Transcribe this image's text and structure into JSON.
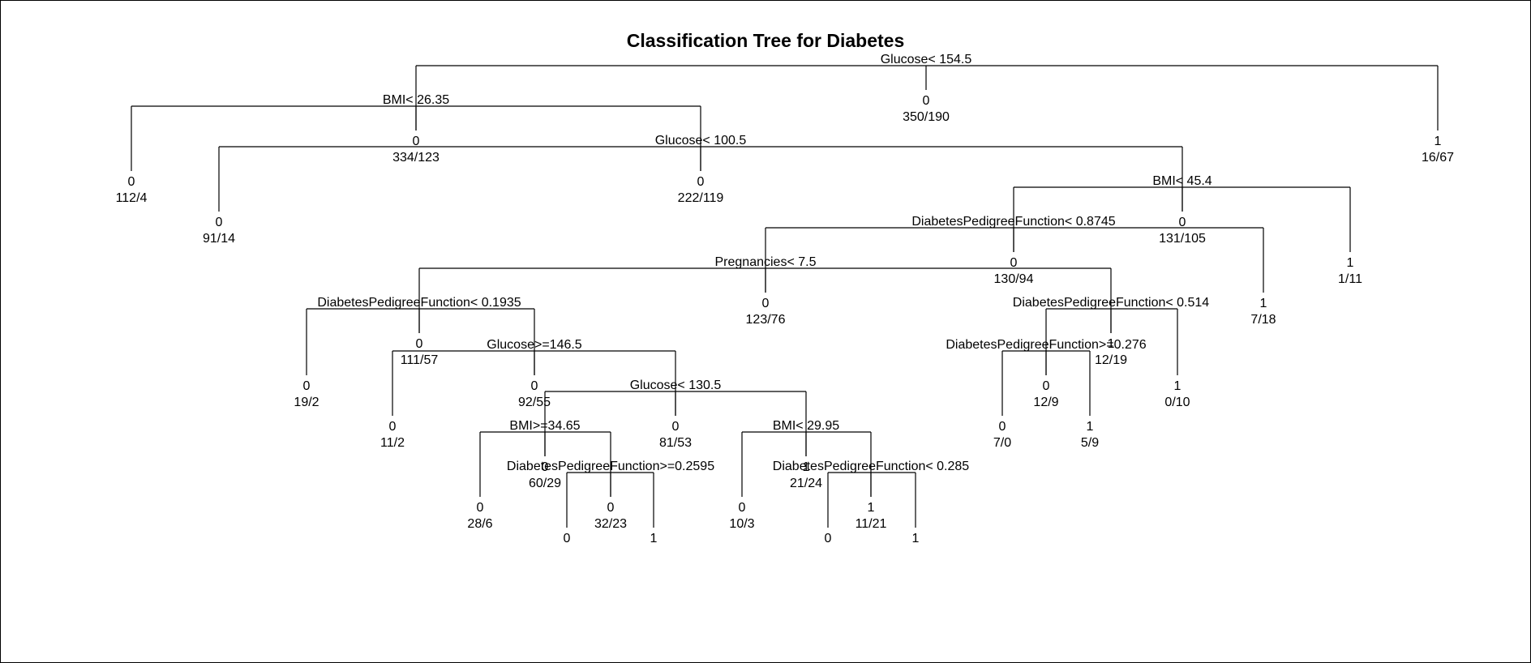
{
  "title": "Classification Tree for Diabetes",
  "colors": {
    "line": "#000000",
    "text": "#000000",
    "background": "#ffffff"
  },
  "nodes": [
    {
      "id": "n1",
      "parent": null,
      "split": "Glucose< 154.5",
      "class": "0",
      "counts": "350/190"
    },
    {
      "id": "n2",
      "parent": "n1",
      "split": "BMI< 26.35",
      "class": "0",
      "counts": "334/123"
    },
    {
      "id": "n3",
      "parent": "n1",
      "split": "",
      "class": "1",
      "counts": "16/67"
    },
    {
      "id": "n4",
      "parent": "n2",
      "split": "",
      "class": "0",
      "counts": "112/4"
    },
    {
      "id": "n5",
      "parent": "n2",
      "split": "Glucose< 100.5",
      "class": "0",
      "counts": "222/119"
    },
    {
      "id": "n6",
      "parent": "n5",
      "split": "",
      "class": "0",
      "counts": "91/14"
    },
    {
      "id": "n7",
      "parent": "n5",
      "split": "BMI< 45.4",
      "class": "0",
      "counts": "131/105"
    },
    {
      "id": "n8",
      "parent": "n7",
      "split": "DiabetesPedigreeFunction< 0.8745",
      "class": "0",
      "counts": "130/94"
    },
    {
      "id": "n9",
      "parent": "n7",
      "split": "",
      "class": "1",
      "counts": "1/11"
    },
    {
      "id": "n10",
      "parent": "n8",
      "split": "Pregnancies< 7.5",
      "class": "0",
      "counts": "123/76"
    },
    {
      "id": "n11",
      "parent": "n8",
      "split": "",
      "class": "1",
      "counts": "7/18"
    },
    {
      "id": "n12",
      "parent": "n10",
      "split": "DiabetesPedigreeFunction< 0.1935",
      "class": "0",
      "counts": "111/57"
    },
    {
      "id": "n13",
      "parent": "n10",
      "split": "DiabetesPedigreeFunction< 0.514",
      "class": "1",
      "counts": "12/19"
    },
    {
      "id": "n14",
      "parent": "n12",
      "split": "",
      "class": "0",
      "counts": "19/2"
    },
    {
      "id": "n15",
      "parent": "n12",
      "split": "Glucose>=146.5",
      "class": "0",
      "counts": "92/55"
    },
    {
      "id": "n16",
      "parent": "n15",
      "split": "",
      "class": "0",
      "counts": "11/2"
    },
    {
      "id": "n17",
      "parent": "n15",
      "split": "Glucose< 130.5",
      "class": "0",
      "counts": "81/53"
    },
    {
      "id": "n18",
      "parent": "n17",
      "split": "BMI>=34.65",
      "class": "0",
      "counts": "60/29"
    },
    {
      "id": "n19",
      "parent": "n17",
      "split": "BMI< 29.95",
      "class": "1",
      "counts": "21/24"
    },
    {
      "id": "n20",
      "parent": "n18",
      "split": "",
      "class": "0",
      "counts": "28/6"
    },
    {
      "id": "n21",
      "parent": "n18",
      "split": "DiabetesPedigreeFunction>=0.2595",
      "class": "0",
      "counts": "32/23"
    },
    {
      "id": "n22",
      "parent": "n21",
      "split": "",
      "class": "0",
      "counts": ""
    },
    {
      "id": "n23",
      "parent": "n21",
      "split": "",
      "class": "1",
      "counts": ""
    },
    {
      "id": "n24",
      "parent": "n19",
      "split": "",
      "class": "0",
      "counts": "10/3"
    },
    {
      "id": "n25",
      "parent": "n19",
      "split": "DiabetesPedigreeFunction< 0.285",
      "class": "1",
      "counts": "11/21"
    },
    {
      "id": "n26",
      "parent": "n25",
      "split": "",
      "class": "0",
      "counts": ""
    },
    {
      "id": "n27",
      "parent": "n25",
      "split": "",
      "class": "1",
      "counts": ""
    },
    {
      "id": "n28",
      "parent": "n13",
      "split": "DiabetesPedigreeFunction>=0.276",
      "class": "0",
      "counts": "12/9"
    },
    {
      "id": "n29",
      "parent": "n13",
      "split": "",
      "class": "1",
      "counts": "0/10"
    },
    {
      "id": "n30",
      "parent": "n28",
      "split": "",
      "class": "0",
      "counts": "7/0"
    },
    {
      "id": "n31",
      "parent": "n28",
      "split": "",
      "class": "1",
      "counts": "5/9"
    }
  ]
}
